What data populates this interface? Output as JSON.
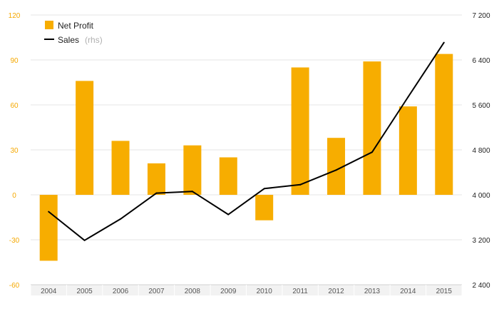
{
  "chart_data": {
    "type": "bar+line",
    "categories": [
      "2004",
      "2005",
      "2006",
      "2007",
      "2008",
      "2009",
      "2010",
      "2011",
      "2012",
      "2013",
      "2014",
      "2015"
    ],
    "series": [
      {
        "name": "Net Profit",
        "type": "bar",
        "axis": "left",
        "color": "#f7ad00",
        "values": [
          -44,
          76,
          36,
          21,
          33,
          25,
          -17,
          85,
          38,
          89,
          59,
          94
        ]
      },
      {
        "name": "Sales",
        "name_note": "(rhs)",
        "type": "line",
        "axis": "right",
        "color": "#000000",
        "values": [
          3700,
          3190,
          3570,
          4030,
          4060,
          3650,
          4110,
          4180,
          4440,
          4760,
          5740,
          6710
        ]
      }
    ],
    "y_left": {
      "ylim": [
        -60,
        120
      ],
      "ticks": [
        -60,
        -30,
        0,
        30,
        60,
        90,
        120
      ],
      "tick_labels": [
        "-60",
        "-30",
        "0",
        "30",
        "60",
        "90",
        "120"
      ],
      "color": "#f5a800"
    },
    "y_right": {
      "ylim": [
        2400,
        7200
      ],
      "ticks": [
        2400,
        3200,
        4000,
        4800,
        5600,
        6400,
        7200
      ],
      "tick_labels": [
        "2 400",
        "3 200",
        "4 000",
        "4 800",
        "5 600",
        "6 400",
        "7 200"
      ],
      "color": "#222222"
    },
    "grid": true,
    "legend": "top-left"
  }
}
